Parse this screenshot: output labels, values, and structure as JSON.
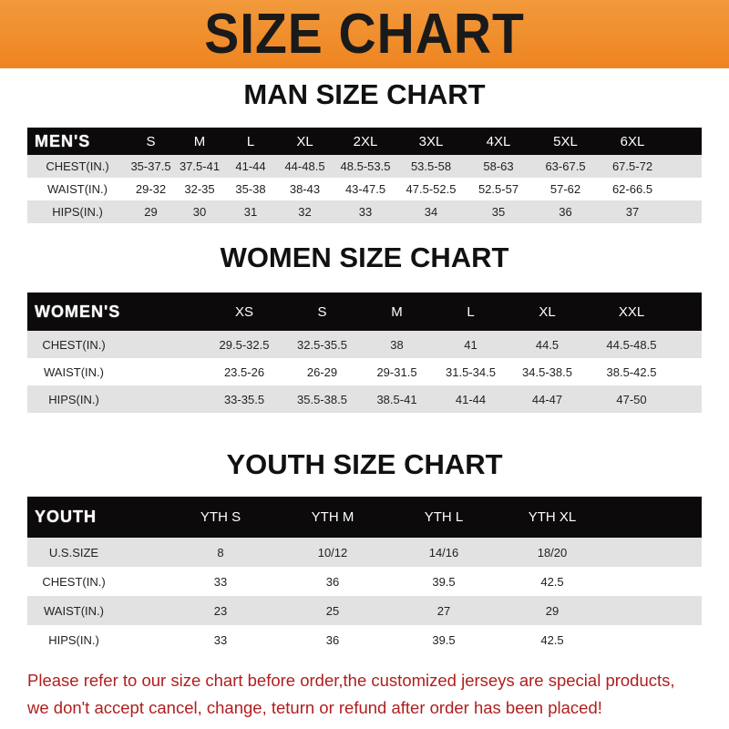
{
  "banner": "SIZE CHART",
  "men": {
    "title": "MAN SIZE CHART",
    "header": "MEN'S",
    "sizes": [
      "S",
      "M",
      "L",
      "XL",
      "2XL",
      "3XL",
      "4XL",
      "5XL",
      "6XL"
    ],
    "rows": [
      {
        "label": "CHEST(IN.)",
        "values": [
          "35-37.5",
          "37.5-41",
          "41-44",
          "44-48.5",
          "48.5-53.5",
          "53.5-58",
          "58-63",
          "63-67.5",
          "67.5-72"
        ]
      },
      {
        "label": "WAIST(IN.)",
        "values": [
          "29-32",
          "32-35",
          "35-38",
          "38-43",
          "43-47.5",
          "47.5-52.5",
          "52.5-57",
          "57-62",
          "62-66.5"
        ]
      },
      {
        "label": "HIPS(IN.)",
        "values": [
          "29",
          "30",
          "31",
          "32",
          "33",
          "34",
          "35",
          "36",
          "37"
        ]
      }
    ]
  },
  "women": {
    "title": "WOMEN SIZE CHART",
    "header": "WOMEN'S",
    "sizes": [
      "XS",
      "S",
      "M",
      "L",
      "XL",
      "XXL"
    ],
    "rows": [
      {
        "label": "CHEST(IN.)",
        "values": [
          "29.5-32.5",
          "32.5-35.5",
          "38",
          "41",
          "44.5",
          "44.5-48.5"
        ]
      },
      {
        "label": "WAIST(IN.)",
        "values": [
          "23.5-26",
          "26-29",
          "29-31.5",
          "31.5-34.5",
          "34.5-38.5",
          "38.5-42.5"
        ]
      },
      {
        "label": "HIPS(IN.)",
        "values": [
          "33-35.5",
          "35.5-38.5",
          "38.5-41",
          "41-44",
          "44-47",
          "47-50"
        ]
      }
    ]
  },
  "youth": {
    "title": "YOUTH SIZE CHART",
    "header": "YOUTH",
    "sizes": [
      "YTH S",
      "YTH M",
      "YTH L",
      "YTH XL"
    ],
    "rows": [
      {
        "label": "U.S.SIZE",
        "values": [
          "8",
          "10/12",
          "14/16",
          "18/20"
        ]
      },
      {
        "label": "CHEST(IN.)",
        "values": [
          "33",
          "36",
          "39.5",
          "42.5"
        ]
      },
      {
        "label": "WAIST(IN.)",
        "values": [
          "23",
          "25",
          "27",
          "29"
        ]
      },
      {
        "label": "HIPS(IN.)",
        "values": [
          "33",
          "36",
          "39.5",
          "42.5"
        ]
      }
    ]
  },
  "notice": [
    "Please refer to our size chart before order,the customized jerseys are special products,",
    "we don't accept cancel, change, teturn or refund after order has been placed!"
  ]
}
